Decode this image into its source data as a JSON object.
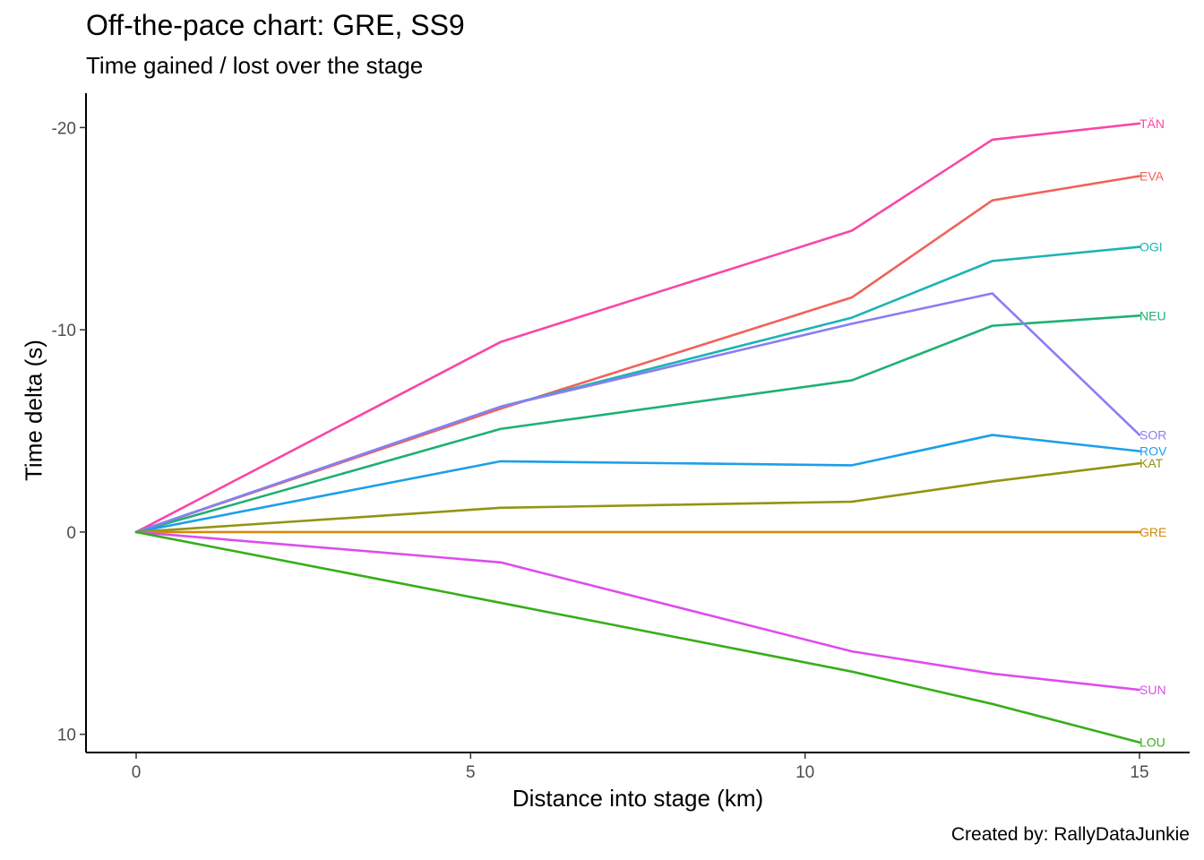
{
  "chart_data": {
    "type": "line",
    "title": "Off-the-pace chart: GRE, SS9",
    "subtitle": "Time gained / lost over the stage",
    "xlabel": "Distance into stage (km)",
    "ylabel": "Time delta (s)",
    "caption": "Created by: RallyDataJunkie",
    "xlim": [
      -0.75,
      15.75
    ],
    "ylim": [
      10.9,
      -21.7
    ],
    "y_reversed": true,
    "x_ticks": [
      0,
      5,
      10,
      15
    ],
    "x_tick_labels": [
      "0",
      "5",
      "10",
      "15"
    ],
    "y_ticks": [
      -20,
      -10,
      0,
      10
    ],
    "y_tick_labels": [
      "-20",
      "-10",
      "0",
      "10"
    ],
    "grid": false,
    "legend": "none (direct labels at line ends)",
    "x": [
      0,
      5.45,
      10.7,
      12.8,
      15.0
    ],
    "series": [
      {
        "name": "TÄN",
        "color": "#F946A6",
        "values": [
          0,
          -9.4,
          -14.9,
          -19.4,
          -20.2
        ]
      },
      {
        "name": "EVA",
        "color": "#F0625A",
        "values": [
          0,
          -6.1,
          -11.6,
          -16.4,
          -17.6
        ]
      },
      {
        "name": "OGI",
        "color": "#1CB3B3",
        "values": [
          0,
          -6.2,
          -10.6,
          -13.4,
          -14.1
        ]
      },
      {
        "name": "NEU",
        "color": "#1EB074",
        "values": [
          0,
          -5.1,
          -7.5,
          -10.2,
          -10.7
        ]
      },
      {
        "name": "SOR",
        "color": "#8A7EF3",
        "values": [
          0,
          -6.2,
          -10.3,
          -11.8,
          -4.8
        ]
      },
      {
        "name": "ROV",
        "color": "#1D9FEA",
        "values": [
          0,
          -3.5,
          -3.3,
          -4.8,
          -4.0
        ]
      },
      {
        "name": "KAT",
        "color": "#949412",
        "values": [
          0,
          -1.2,
          -1.5,
          -2.5,
          -3.4
        ]
      },
      {
        "name": "GRE",
        "color": "#D58A0C",
        "values": [
          0,
          0,
          0,
          0,
          0
        ]
      },
      {
        "name": "SUN",
        "color": "#DE4DEC",
        "values": [
          0,
          1.5,
          5.9,
          7.0,
          7.8
        ]
      },
      {
        "name": "LOU",
        "color": "#38AE1A",
        "values": [
          0,
          3.5,
          6.9,
          8.5,
          10.4
        ]
      }
    ]
  }
}
